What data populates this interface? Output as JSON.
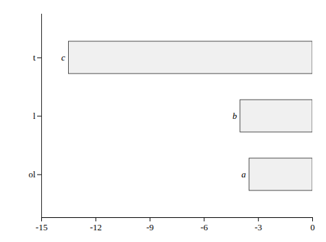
{
  "chart_data": {
    "type": "bar",
    "orientation": "horizontal",
    "categories": [
      "t",
      "l",
      "ol"
    ],
    "values": [
      -13.5,
      -4.0,
      -3.5
    ],
    "annotations": [
      "c",
      "b",
      "a"
    ],
    "color": "#f0f0f0",
    "xlim": [
      -15,
      0
    ],
    "xticks": [
      -15,
      -12,
      -9,
      -6,
      -3,
      0
    ],
    "grid": false
  }
}
